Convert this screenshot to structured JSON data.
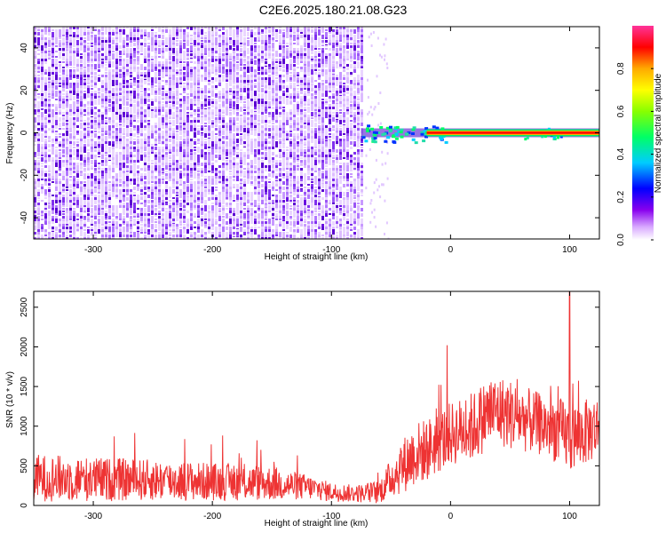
{
  "title": "C2E6.2025.180.21.08.G23",
  "chart_data": [
    {
      "type": "heatmap",
      "xlabel": "Height of straight line (km)",
      "ylabel": "Frequency (Hz)",
      "xlim": [
        -350,
        125
      ],
      "ylim": [
        -50,
        50
      ],
      "xticks": [
        -300,
        -200,
        -100,
        0,
        100
      ],
      "yticks": [
        -40,
        -20,
        0,
        20,
        40
      ],
      "tick_labels_x": [
        "-300",
        "-200",
        "-100",
        "0",
        "100"
      ],
      "tick_labels_y": [
        "-40",
        "-20",
        "0",
        "20",
        "40"
      ],
      "noise_region_x": [
        -350,
        -73
      ],
      "signal_line_frequency": 0,
      "signal_start_x": -75,
      "colorbar": {
        "label": "Normalized spectral amplitude",
        "range": [
          0,
          1
        ],
        "ticks": [
          "0.0",
          "0.2",
          "0.4",
          "0.6",
          "0.8"
        ],
        "colors": [
          "#ffffff",
          "#cc88ff",
          "#7700dd",
          "#0000ff",
          "#00ccff",
          "#00ff66",
          "#88ff00",
          "#ffff00",
          "#ffaa00",
          "#ff0000",
          "#ff33aa"
        ]
      }
    },
    {
      "type": "line",
      "xlabel": "Height of straight line (km)",
      "ylabel": "SNR (10 * v/v)",
      "xlim": [
        -350,
        125
      ],
      "ylim": [
        0,
        2700
      ],
      "xticks": [
        -300,
        -200,
        -100,
        0,
        100
      ],
      "yticks": [
        0,
        500,
        1000,
        1500,
        2000,
        2500
      ],
      "tick_labels_x": [
        "-300",
        "-200",
        "-100",
        "0",
        "100"
      ],
      "tick_labels_y": [
        "0",
        "500",
        "1000",
        "1500",
        "2000",
        "2500"
      ],
      "line_color": "#ee3333",
      "series": [
        {
          "x": [
            -350,
            -300,
            -250,
            -200,
            -150,
            -120,
            -100,
            -80,
            -60,
            -50,
            -40,
            -30,
            -20,
            -10,
            0,
            10,
            20,
            30,
            40,
            50,
            60,
            70,
            80,
            90,
            100,
            110,
            125
          ],
          "y": [
            350,
            330,
            320,
            300,
            280,
            230,
            170,
            150,
            170,
            350,
            500,
            650,
            700,
            800,
            900,
            950,
            1000,
            1150,
            1200,
            1150,
            1100,
            1050,
            1000,
            950,
            850,
            900,
            1000
          ],
          "spread": [
            300,
            280,
            260,
            240,
            220,
            160,
            120,
            110,
            150,
            250,
            350,
            400,
            400,
            400,
            400,
            420,
            450,
            450,
            450,
            450,
            420,
            400,
            400,
            420,
            450,
            420,
            400
          ]
        }
      ],
      "annotations_peak": {
        "x": 100,
        "y": 2700
      }
    }
  ]
}
